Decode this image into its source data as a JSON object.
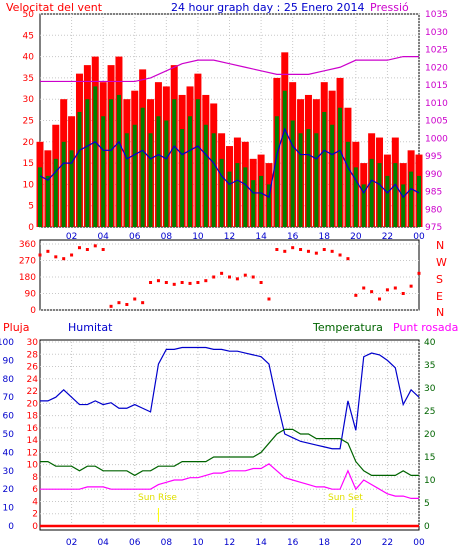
{
  "header": {
    "left_label": "Velocitat del vent",
    "title": "24 hour graph day : 25 Enero 2014",
    "right_label": "Pressió"
  },
  "compass_labels": [
    "N",
    "W",
    "S",
    "E",
    "N"
  ],
  "panel3_labels": {
    "rain": "Pluja",
    "humidity": "Humitat",
    "temperature": "Temperatura",
    "dewpoint": "Punt rosada"
  },
  "annotations": {
    "sunrise": "Sun Rise",
    "sunset": "Sun Set"
  },
  "colors": {
    "wind_gust": "#ff0000",
    "wind_speed": "#008000",
    "wind_avg": "#0000cc",
    "pressure": "#cc00cc",
    "direction": "#ff0000",
    "rain": "#ff0000",
    "humidity": "#0000cc",
    "temperature": "#006400",
    "dewpoint": "#ff00ff",
    "sun": "#ffff00"
  },
  "chart_data": [
    {
      "type": "line",
      "name": "wind-and-pressure",
      "ylim_left": [
        0,
        50
      ],
      "ylim_right": [
        975,
        1035
      ],
      "left_ticks": [
        "0",
        "5",
        "10",
        "15",
        "20",
        "25",
        "30",
        "35",
        "40",
        "45",
        "50"
      ],
      "right_ticks": [
        "975",
        "980",
        "985",
        "990",
        "995",
        "1000",
        "1005",
        "1010",
        "1015",
        "1020",
        "1025",
        "1030",
        "1035"
      ],
      "x_ticks": [
        "02",
        "04",
        "06",
        "08",
        "10",
        "12",
        "14",
        "16",
        "18",
        "20",
        "22",
        "00"
      ],
      "series": [
        {
          "name": "Velocitat del vent",
          "axis": "left",
          "x": [
            0,
            0.5,
            1,
            1.5,
            2,
            2.5,
            3,
            3.5,
            4,
            4.5,
            5,
            5.5,
            6,
            6.5,
            7,
            7.5,
            8,
            8.5,
            9,
            9.5,
            10,
            10.5,
            11,
            11.5,
            12,
            12.5,
            13,
            13.5,
            14,
            14.5,
            15,
            15.5,
            16,
            16.5,
            17,
            17.5,
            18,
            18.5,
            19,
            19.5,
            20,
            20.5,
            21,
            21.5,
            22,
            22.5,
            23,
            23.5,
            24
          ],
          "values": [
            14,
            12,
            16,
            20,
            18,
            27,
            30,
            33,
            26,
            30,
            31,
            22,
            24,
            28,
            22,
            26,
            25,
            30,
            23,
            26,
            30,
            24,
            22,
            16,
            13,
            15,
            14,
            11,
            12,
            10,
            26,
            32,
            25,
            22,
            23,
            22,
            27,
            24,
            28,
            20,
            14,
            10,
            16,
            15,
            12,
            15,
            10,
            13,
            12
          ]
        },
        {
          "name": "gust",
          "axis": "left",
          "x": [
            0,
            0.5,
            1,
            1.5,
            2,
            2.5,
            3,
            3.5,
            4,
            4.5,
            5,
            5.5,
            6,
            6.5,
            7,
            7.5,
            8,
            8.5,
            9,
            9.5,
            10,
            10.5,
            11,
            11.5,
            12,
            12.5,
            13,
            13.5,
            14,
            14.5,
            15,
            15.5,
            16,
            16.5,
            17,
            17.5,
            18,
            18.5,
            19,
            19.5,
            20,
            20.5,
            21,
            21.5,
            22,
            22.5,
            23,
            23.5,
            24
          ],
          "values": [
            20,
            18,
            24,
            30,
            26,
            36,
            38,
            40,
            34,
            38,
            40,
            30,
            32,
            37,
            30,
            34,
            33,
            38,
            31,
            33,
            36,
            31,
            29,
            22,
            19,
            21,
            20,
            16,
            17,
            15,
            35,
            41,
            34,
            30,
            31,
            30,
            34,
            32,
            35,
            28,
            20,
            15,
            22,
            21,
            17,
            21,
            15,
            18,
            17
          ]
        },
        {
          "name": "average",
          "axis": "left",
          "x": [
            0,
            0.5,
            1,
            1.5,
            2,
            2.5,
            3,
            3.5,
            4,
            4.5,
            5,
            5.5,
            6,
            6.5,
            7,
            7.5,
            8,
            8.5,
            9,
            9.5,
            10,
            10.5,
            11,
            11.5,
            12,
            12.5,
            13,
            13.5,
            14,
            14.5,
            15,
            15.5,
            16,
            16.5,
            17,
            17.5,
            18,
            18.5,
            19,
            19.5,
            20,
            20.5,
            21,
            21.5,
            22,
            22.5,
            23,
            23.5,
            24
          ],
          "values": [
            12,
            11,
            13,
            15,
            15,
            18,
            19,
            20,
            18,
            18,
            20,
            16,
            17,
            18,
            16,
            17,
            16,
            19,
            17,
            18,
            19,
            17,
            15,
            12,
            10,
            11,
            10,
            8,
            8,
            7,
            17,
            23,
            19,
            17,
            17,
            16,
            18,
            17,
            18,
            14,
            11,
            8,
            11,
            10,
            8,
            10,
            7,
            9,
            8
          ]
        },
        {
          "name": "Pressió",
          "axis": "right",
          "x": [
            0,
            1,
            2,
            3,
            4,
            5,
            6,
            7,
            8,
            9,
            10,
            11,
            12,
            13,
            14,
            15,
            16,
            17,
            18,
            19,
            20,
            21,
            22,
            23,
            24
          ],
          "values": [
            1016,
            1016,
            1016,
            1016,
            1016,
            1016,
            1016,
            1017,
            1019,
            1021,
            1022,
            1022,
            1021,
            1020,
            1019,
            1018,
            1018,
            1018,
            1019,
            1020,
            1022,
            1022,
            1022,
            1023,
            1023
          ]
        }
      ]
    },
    {
      "type": "scatter",
      "name": "wind-direction",
      "ylim": [
        0,
        360
      ],
      "ticks": [
        "0",
        "90",
        "180",
        "270",
        "360"
      ],
      "x": [
        0,
        0.5,
        1,
        1.5,
        2,
        2.5,
        3,
        3.5,
        4,
        4.5,
        5,
        5.5,
        6,
        6.5,
        7,
        7.5,
        8,
        8.5,
        9,
        9.5,
        10,
        10.5,
        11,
        11.5,
        12,
        12.5,
        13,
        13.5,
        14,
        14.5,
        15,
        15.5,
        16,
        16.5,
        17,
        17.5,
        18,
        18.5,
        19,
        19.5,
        20,
        20.5,
        21,
        21.5,
        22,
        22.5,
        23,
        23.5,
        24
      ],
      "values": [
        300,
        320,
        290,
        280,
        300,
        340,
        330,
        350,
        330,
        20,
        40,
        30,
        60,
        40,
        150,
        160,
        150,
        140,
        150,
        145,
        150,
        160,
        180,
        200,
        180,
        170,
        190,
        180,
        150,
        60,
        330,
        320,
        340,
        330,
        320,
        310,
        330,
        320,
        300,
        280,
        80,
        120,
        100,
        60,
        110,
        120,
        90,
        130,
        200
      ]
    },
    {
      "type": "line",
      "name": "humidity-temperature",
      "ylim_rain": [
        0,
        30
      ],
      "ylim_humidity": [
        0,
        100
      ],
      "ylim_temperature": [
        0,
        40
      ],
      "rain_ticks": [
        "0",
        "2",
        "4",
        "6",
        "8",
        "10",
        "12",
        "14",
        "16",
        "18",
        "20",
        "22",
        "24",
        "26",
        "28",
        "30"
      ],
      "humidity_ticks": [
        "0",
        "10",
        "20",
        "30",
        "40",
        "50",
        "60",
        "70",
        "80",
        "90",
        "100"
      ],
      "temperature_ticks": [
        "0",
        "5",
        "10",
        "15",
        "20",
        "25",
        "30",
        "35",
        "40"
      ],
      "sunrise_hour": 7.5,
      "sunset_hour": 19.8,
      "series": [
        {
          "name": "Humitat",
          "x": [
            0,
            0.5,
            1,
            1.5,
            2,
            2.5,
            3,
            3.5,
            4,
            4.5,
            5,
            5.5,
            6,
            6.5,
            7,
            7.5,
            8,
            8.5,
            9,
            9.5,
            10,
            10.5,
            11,
            11.5,
            12,
            12.5,
            13,
            13.5,
            14,
            14.5,
            15,
            15.5,
            16,
            16.5,
            17,
            17.5,
            18,
            18.5,
            19,
            19.5,
            20,
            20.5,
            21,
            21.5,
            22,
            22.5,
            23,
            23.5,
            24
          ],
          "values": [
            68,
            68,
            70,
            74,
            70,
            66,
            66,
            68,
            66,
            67,
            64,
            64,
            66,
            64,
            62,
            88,
            96,
            96,
            97,
            97,
            97,
            97,
            96,
            96,
            95,
            95,
            94,
            93,
            92,
            88,
            68,
            50,
            48,
            46,
            45,
            44,
            43,
            42,
            42,
            68,
            52,
            92,
            94,
            93,
            90,
            86,
            66,
            74,
            70
          ]
        },
        {
          "name": "Temperatura",
          "x": [
            0,
            0.5,
            1,
            1.5,
            2,
            2.5,
            3,
            3.5,
            4,
            4.5,
            5,
            5.5,
            6,
            6.5,
            7,
            7.5,
            8,
            8.5,
            9,
            9.5,
            10,
            10.5,
            11,
            11.5,
            12,
            12.5,
            13,
            13.5,
            14,
            14.5,
            15,
            15.5,
            16,
            16.5,
            17,
            17.5,
            18,
            18.5,
            19,
            19.5,
            20,
            20.5,
            21,
            21.5,
            22,
            22.5,
            23,
            23.5,
            24
          ],
          "values": [
            14,
            14,
            13,
            13,
            13,
            12,
            13,
            13,
            12,
            12,
            12,
            12,
            11,
            12,
            12,
            13,
            13,
            13,
            14,
            14,
            14,
            14,
            15,
            15,
            15,
            15,
            15,
            15,
            16,
            18,
            20,
            21,
            21,
            20,
            20,
            19,
            19,
            19,
            19,
            18,
            14,
            12,
            11,
            11,
            11,
            11,
            12,
            11,
            11
          ]
        },
        {
          "name": "Punt rosada",
          "x": [
            0,
            0.5,
            1,
            1.5,
            2,
            2.5,
            3,
            3.5,
            4,
            4.5,
            5,
            5.5,
            6,
            6.5,
            7,
            7.5,
            8,
            8.5,
            9,
            9.5,
            10,
            10.5,
            11,
            11.5,
            12,
            12.5,
            13,
            13.5,
            14,
            14.5,
            15,
            15.5,
            16,
            16.5,
            17,
            17.5,
            18,
            18.5,
            19,
            19.5,
            20,
            20.5,
            21,
            21.5,
            22,
            22.5,
            23,
            23.5,
            24
          ],
          "values": [
            8,
            8,
            8,
            8,
            8,
            8,
            8.5,
            8.5,
            8.5,
            8,
            8,
            8,
            8,
            8,
            8,
            9,
            9.5,
            10,
            10,
            10.5,
            10.5,
            11,
            11.5,
            11.5,
            12,
            12,
            12,
            12.5,
            12.5,
            13.5,
            12,
            10.5,
            10,
            9.5,
            9,
            8.5,
            8.5,
            8,
            8,
            12,
            8,
            10,
            9,
            8,
            7,
            6.5,
            6.5,
            6,
            6
          ]
        },
        {
          "name": "Pluja",
          "x": [
            0,
            24
          ],
          "values": [
            0,
            0
          ]
        }
      ]
    }
  ]
}
